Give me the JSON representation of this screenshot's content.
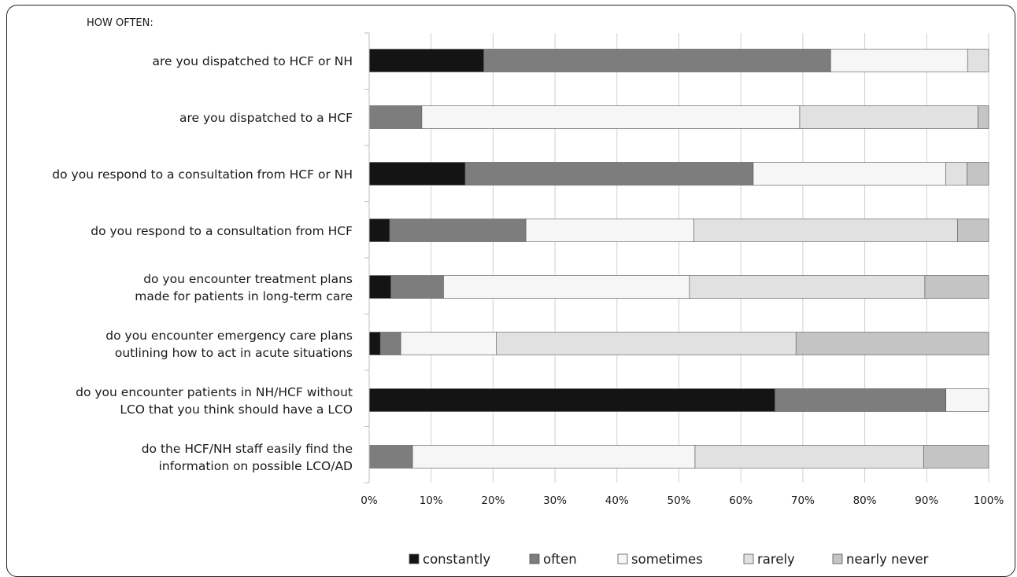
{
  "chart_data": {
    "type": "bar",
    "orientation": "horizontal",
    "stacked": true,
    "percent": true,
    "header": "HOW OFTEN:",
    "title": "",
    "xlabel": "",
    "ylabel": "",
    "xlim": [
      0,
      100
    ],
    "xticks": [
      "0%",
      "10%",
      "20%",
      "30%",
      "40%",
      "50%",
      "60%",
      "70%",
      "80%",
      "90%",
      "100%"
    ],
    "grid": true,
    "legend_position": "bottom",
    "categories": [
      [
        "are you dispatched to HCF or NH"
      ],
      [
        "are you dispatched to a HCF"
      ],
      [
        "do you respond to a consultation from HCF or NH"
      ],
      [
        "do you respond to a consultation from HCF"
      ],
      [
        "do you encounter treatment plans",
        "made for patients in long-term care"
      ],
      [
        "do you encounter emergency care plans",
        "outlining how to act in acute situations"
      ],
      [
        "do you encounter patients in NH/HCF without",
        "LCO that you think should have a LCO"
      ],
      [
        "do the HCF/NH staff easily find the",
        "information on possible LCO/AD"
      ]
    ],
    "series": [
      {
        "name": "constantly",
        "color": "#141414",
        "values": [
          18.5,
          0,
          15.5,
          3.3,
          3.5,
          1.8,
          65.5,
          0
        ]
      },
      {
        "name": "often",
        "color": "#7d7d7d",
        "values": [
          56.0,
          8.5,
          46.5,
          22.0,
          8.5,
          3.3,
          27.6,
          7.0
        ]
      },
      {
        "name": "sometimes",
        "color": "#f6f6f6",
        "values": [
          22.1,
          61.0,
          31.1,
          27.1,
          39.7,
          15.4,
          6.9,
          45.6
        ]
      },
      {
        "name": "rarely",
        "color": "#e1e1e1",
        "values": [
          3.4,
          28.8,
          3.4,
          42.6,
          38.0,
          48.4,
          0,
          36.9
        ]
      },
      {
        "name": "nearly never",
        "color": "#c4c4c4",
        "values": [
          0,
          1.7,
          3.5,
          5.0,
          10.3,
          31.1,
          0,
          10.5
        ]
      }
    ]
  }
}
